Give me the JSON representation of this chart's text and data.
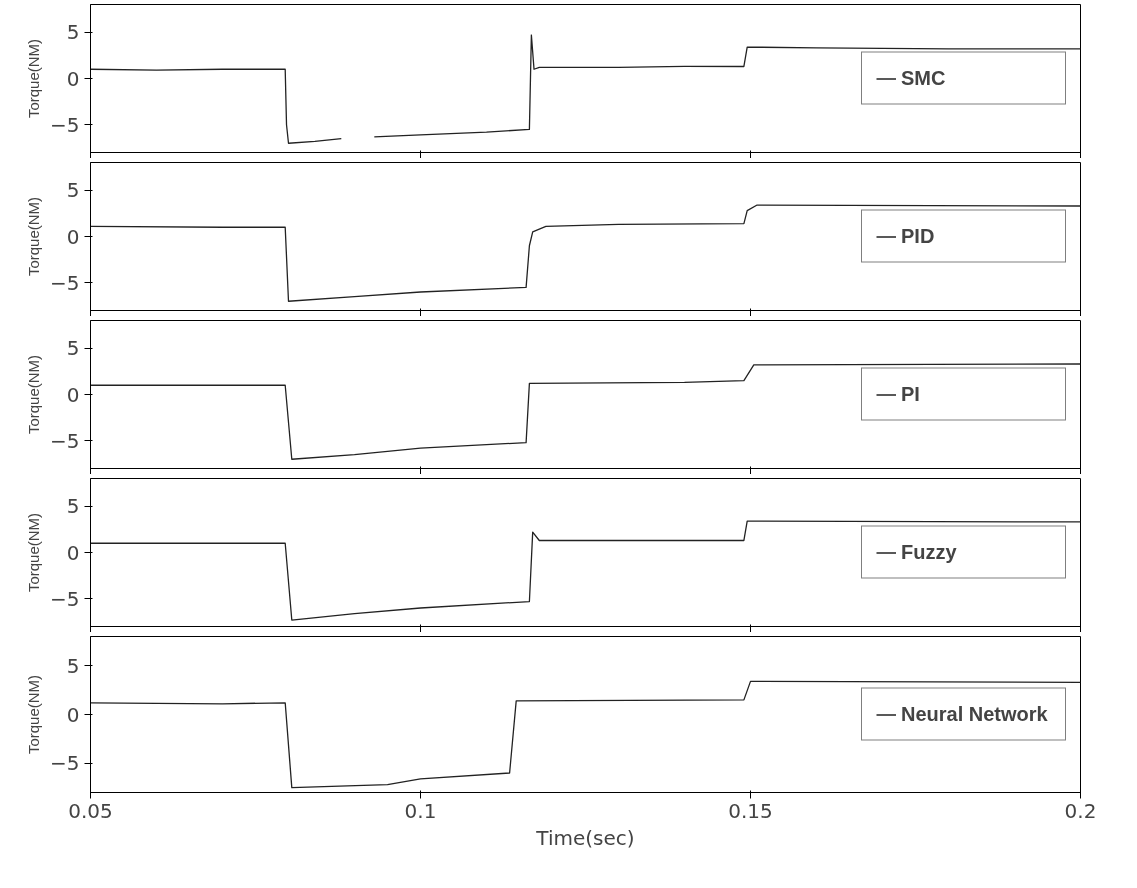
{
  "chart_data": [
    {
      "type": "line",
      "ylabel": "Torque(NM)",
      "xlim": [
        0.05,
        0.2
      ],
      "xticks": [
        0.05,
        0.1,
        0.15,
        0.2
      ],
      "ylim": [
        -8,
        8
      ],
      "yticks": [
        -5,
        0,
        5
      ],
      "tick_labels": "y",
      "grid": false,
      "legend": "right",
      "marker": "none",
      "line_style": "solid",
      "x": [
        0.05,
        0.06,
        0.07,
        0.0795,
        0.0797,
        0.08,
        0.084,
        0.088,
        0.0905,
        0.093,
        0.1,
        0.11,
        0.1165,
        0.1168,
        0.1172,
        0.118,
        0.13,
        0.14,
        0.149,
        0.1495,
        0.16,
        0.18,
        0.2
      ],
      "series": [
        {
          "name": "SMC",
          "color": "#222222",
          "values": [
            1,
            0.9,
            1,
            1,
            -5,
            -7,
            -6.8,
            -6.5,
            null,
            -6.3,
            -6.1,
            -5.8,
            -5.5,
            4.7,
            1,
            1.2,
            1.2,
            1.3,
            1.3,
            3.4,
            3.3,
            3.2,
            3.2
          ]
        }
      ]
    },
    {
      "type": "line",
      "ylabel": "Torque(NM)",
      "xlim": [
        0.05,
        0.2
      ],
      "xticks": [
        0.05,
        0.1,
        0.15,
        0.2
      ],
      "ylim": [
        -8,
        8
      ],
      "yticks": [
        -5,
        0,
        5
      ],
      "tick_labels": "y",
      "grid": false,
      "legend": "right",
      "marker": "none",
      "line_style": "solid",
      "x": [
        0.05,
        0.07,
        0.0795,
        0.08,
        0.09,
        0.1,
        0.116,
        0.1165,
        0.117,
        0.119,
        0.13,
        0.149,
        0.1495,
        0.151,
        0.2
      ],
      "series": [
        {
          "name": "PID",
          "color": "#222222",
          "values": [
            1.1,
            1,
            1,
            -7,
            -6.5,
            -6,
            -5.5,
            -1,
            0.5,
            1.1,
            1.3,
            1.4,
            2.8,
            3.4,
            3.3
          ]
        }
      ]
    },
    {
      "type": "line",
      "ylabel": "Torque(NM)",
      "xlim": [
        0.05,
        0.2
      ],
      "xticks": [
        0.05,
        0.1,
        0.15,
        0.2
      ],
      "ylim": [
        -8,
        8
      ],
      "yticks": [
        -5,
        0,
        5
      ],
      "tick_labels": "y",
      "grid": false,
      "legend": "right",
      "marker": "none",
      "line_style": "solid",
      "x": [
        0.05,
        0.07,
        0.0795,
        0.0805,
        0.09,
        0.1,
        0.116,
        0.1165,
        0.14,
        0.149,
        0.1505,
        0.2
      ],
      "series": [
        {
          "name": "PI",
          "color": "#222222",
          "values": [
            1,
            1,
            1,
            -7,
            -6.5,
            -5.8,
            -5.2,
            1.2,
            1.3,
            1.5,
            3.2,
            3.3
          ]
        }
      ]
    },
    {
      "type": "line",
      "ylabel": "Torque(NM)",
      "xlim": [
        0.05,
        0.2
      ],
      "xticks": [
        0.05,
        0.1,
        0.15,
        0.2
      ],
      "ylim": [
        -8,
        8
      ],
      "yticks": [
        -5,
        0,
        5
      ],
      "tick_labels": "y",
      "grid": false,
      "legend": "right",
      "marker": "none",
      "line_style": "solid",
      "x": [
        0.05,
        0.07,
        0.0795,
        0.0805,
        0.09,
        0.1,
        0.1165,
        0.117,
        0.118,
        0.149,
        0.1495,
        0.2
      ],
      "series": [
        {
          "name": "Fuzzy",
          "color": "#222222",
          "values": [
            1,
            1,
            1,
            -7.3,
            -6.6,
            -6,
            -5.3,
            2.2,
            1.3,
            1.3,
            3.4,
            3.3
          ]
        }
      ]
    },
    {
      "type": "line",
      "ylabel": "Torque(NM)",
      "xlabel": "Time(sec)",
      "xlim": [
        0.05,
        0.2
      ],
      "xticks": [
        0.05,
        0.1,
        0.15,
        0.2
      ],
      "ylim": [
        -8,
        8
      ],
      "yticks": [
        -5,
        0,
        5
      ],
      "grid": false,
      "legend": "right",
      "marker": "none",
      "line_style": "solid",
      "x": [
        0.05,
        0.07,
        0.0795,
        0.0805,
        0.095,
        0.1,
        0.1135,
        0.1145,
        0.149,
        0.15,
        0.2
      ],
      "series": [
        {
          "name": "Neural Network",
          "color": "#222222",
          "values": [
            1.2,
            1.1,
            1.2,
            -7.5,
            -7.2,
            -6.6,
            -6,
            1.4,
            1.5,
            3.4,
            3.3
          ]
        }
      ]
    }
  ]
}
